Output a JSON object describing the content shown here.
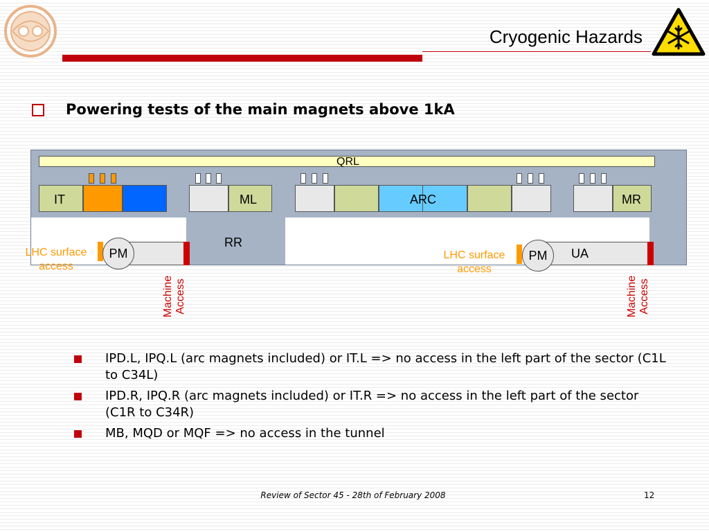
{
  "header": {
    "title": "Cryogenic Hazards"
  },
  "icons": {
    "logo": "lhc-logo-icon",
    "hazard": "cryogenic-hazard-warning-icon"
  },
  "heading": "Powering tests of the main magnets above 1kA",
  "diagram": {
    "qrl": "QRL",
    "it": "IT",
    "ml": "ML",
    "arc": "ARC",
    "mr": "MR",
    "rr": "RR",
    "ua": "UA",
    "pm_left": "PM",
    "pm_right": "PM",
    "surface_left": "LHC surface access",
    "surface_right": "LHC surface access",
    "machine_access_left": [
      "Machine",
      "Access"
    ],
    "machine_access_right": [
      "Machine",
      "Access"
    ],
    "colors": {
      "orange": "#ff9900",
      "blue": "#0066ff",
      "light_blue": "#66ccff",
      "green": "#cfd99a",
      "red": "#cc0000",
      "tunnel": "#a5b3c5",
      "qrl": "#ffffc0"
    }
  },
  "bullets": [
    "IPD.L, IPQ.L (arc magnets included) or IT.L => no access in the left part of the sector (C1L to C34L)",
    "IPD.R, IPQ.R (arc magnets included) or IT.R => no access in the left part of the sector (C1R to C34R)",
    "MB, MQD or MQF => no access in the tunnel"
  ],
  "footer": {
    "text": "Review of Sector 45 - 28th of February 2008",
    "page": "12"
  }
}
